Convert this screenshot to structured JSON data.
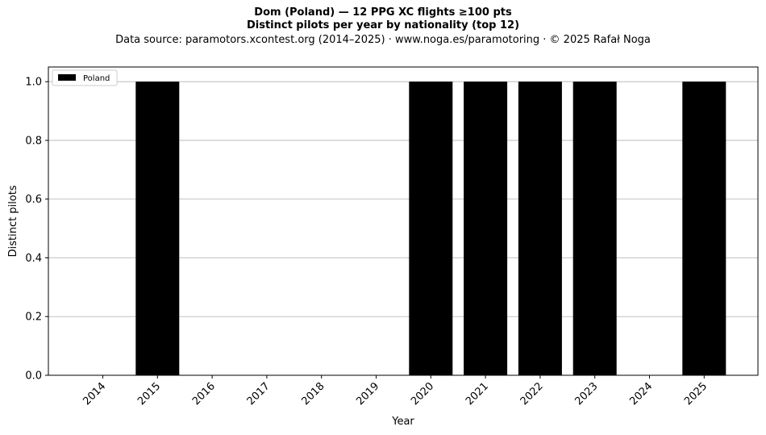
{
  "header": {
    "title": "Dom (Poland)  —  12 PPG XC flights ≥100 pts",
    "subtitle": "Distinct pilots per year by nationality (top 12)",
    "source": "Data source: paramotors.xcontest.org (2014–2025)  ·  www.noga.es/paramotoring  ·  © 2025 Rafał Noga"
  },
  "chart_data": {
    "type": "bar",
    "title": "Dom (Poland)  —  12 PPG XC flights ≥100 pts",
    "subtitle": "Distinct pilots per year by nationality (top 12)",
    "xlabel": "Year",
    "ylabel": "Distinct pilots",
    "categories": [
      "2014",
      "2015",
      "2016",
      "2017",
      "2018",
      "2019",
      "2020",
      "2021",
      "2022",
      "2023",
      "2024",
      "2025"
    ],
    "series": [
      {
        "name": "Poland",
        "color": "#000000",
        "values": [
          0,
          1,
          0,
          0,
          0,
          0,
          1,
          1,
          1,
          1,
          0,
          1
        ]
      }
    ],
    "ylim": [
      0,
      1.05
    ],
    "yticks": [
      "0.0",
      "0.2",
      "0.4",
      "0.6",
      "0.8",
      "1.0"
    ],
    "grid": "horizontal",
    "legend": "top-left"
  }
}
